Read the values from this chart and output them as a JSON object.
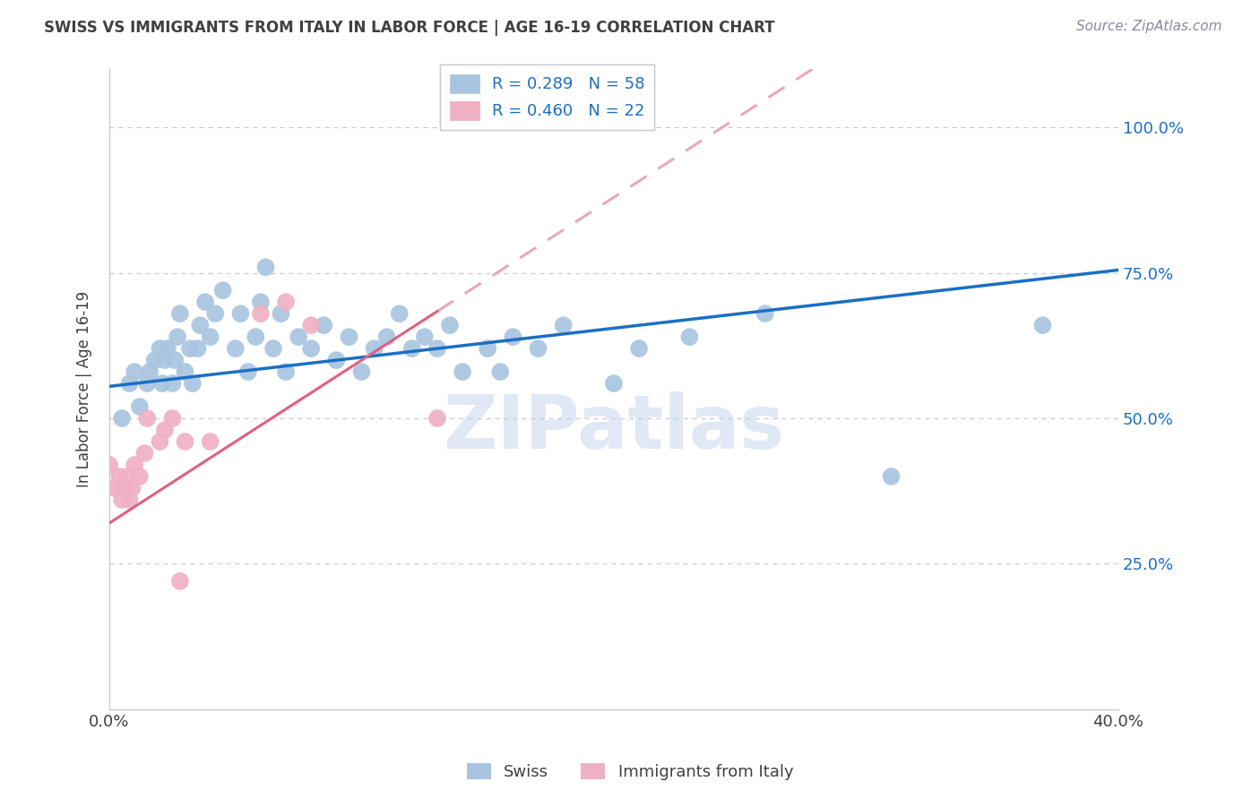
{
  "title": "SWISS VS IMMIGRANTS FROM ITALY IN LABOR FORCE | AGE 16-19 CORRELATION CHART",
  "source": "Source: ZipAtlas.com",
  "ylabel": "In Labor Force | Age 16-19",
  "xlim": [
    0.0,
    0.4
  ],
  "ylim": [
    0.0,
    1.1
  ],
  "yticks": [
    0.25,
    0.5,
    0.75,
    1.0
  ],
  "ytick_labels": [
    "25.0%",
    "50.0%",
    "75.0%",
    "100.0%"
  ],
  "xticks": [
    0.0,
    0.05,
    0.1,
    0.15,
    0.2,
    0.25,
    0.3,
    0.35,
    0.4
  ],
  "xtick_labels": [
    "0.0%",
    "",
    "",
    "",
    "",
    "",
    "",
    "",
    "40.0%"
  ],
  "swiss_color": "#a8c4e0",
  "italy_color": "#f0b0c4",
  "swiss_line_color": "#1a6fc4",
  "italy_line_solid_color": "#e06080",
  "italy_line_dashed_color": "#e8a8bc",
  "R_swiss": 0.289,
  "N_swiss": 58,
  "R_italy": 0.46,
  "N_italy": 22,
  "swiss_x": [
    0.005,
    0.008,
    0.01,
    0.012,
    0.015,
    0.016,
    0.018,
    0.02,
    0.021,
    0.022,
    0.023,
    0.025,
    0.026,
    0.027,
    0.028,
    0.03,
    0.032,
    0.033,
    0.035,
    0.036,
    0.038,
    0.04,
    0.042,
    0.045,
    0.05,
    0.052,
    0.055,
    0.058,
    0.06,
    0.062,
    0.065,
    0.068,
    0.07,
    0.075,
    0.08,
    0.085,
    0.09,
    0.095,
    0.1,
    0.105,
    0.11,
    0.115,
    0.12,
    0.125,
    0.13,
    0.135,
    0.14,
    0.15,
    0.155,
    0.16,
    0.17,
    0.18,
    0.2,
    0.21,
    0.23,
    0.26,
    0.31,
    0.37
  ],
  "swiss_y": [
    0.5,
    0.56,
    0.58,
    0.52,
    0.56,
    0.58,
    0.6,
    0.62,
    0.56,
    0.6,
    0.62,
    0.56,
    0.6,
    0.64,
    0.68,
    0.58,
    0.62,
    0.56,
    0.62,
    0.66,
    0.7,
    0.64,
    0.68,
    0.72,
    0.62,
    0.68,
    0.58,
    0.64,
    0.7,
    0.76,
    0.62,
    0.68,
    0.58,
    0.64,
    0.62,
    0.66,
    0.6,
    0.64,
    0.58,
    0.62,
    0.64,
    0.68,
    0.62,
    0.64,
    0.62,
    0.66,
    0.58,
    0.62,
    0.58,
    0.64,
    0.62,
    0.66,
    0.56,
    0.62,
    0.64,
    0.68,
    0.4,
    0.66
  ],
  "italy_x": [
    0.0,
    0.002,
    0.004,
    0.005,
    0.006,
    0.007,
    0.008,
    0.009,
    0.01,
    0.012,
    0.014,
    0.015,
    0.02,
    0.022,
    0.025,
    0.028,
    0.03,
    0.04,
    0.06,
    0.07,
    0.08,
    0.13
  ],
  "italy_y": [
    0.42,
    0.38,
    0.4,
    0.36,
    0.38,
    0.4,
    0.36,
    0.38,
    0.42,
    0.4,
    0.44,
    0.5,
    0.46,
    0.48,
    0.5,
    0.22,
    0.46,
    0.46,
    0.68,
    0.7,
    0.66,
    0.5
  ],
  "watermark": "ZIPatlas",
  "background_color": "#ffffff",
  "grid_color": "#c8c8d4",
  "title_color": "#404040",
  "axis_label_color": "#404040",
  "tick_label_color_y": "#1a6fc4",
  "tick_label_color_x": "#404040",
  "swiss_intercept": 0.555,
  "swiss_slope": 0.5,
  "italy_intercept": 0.32,
  "italy_slope": 2.8
}
